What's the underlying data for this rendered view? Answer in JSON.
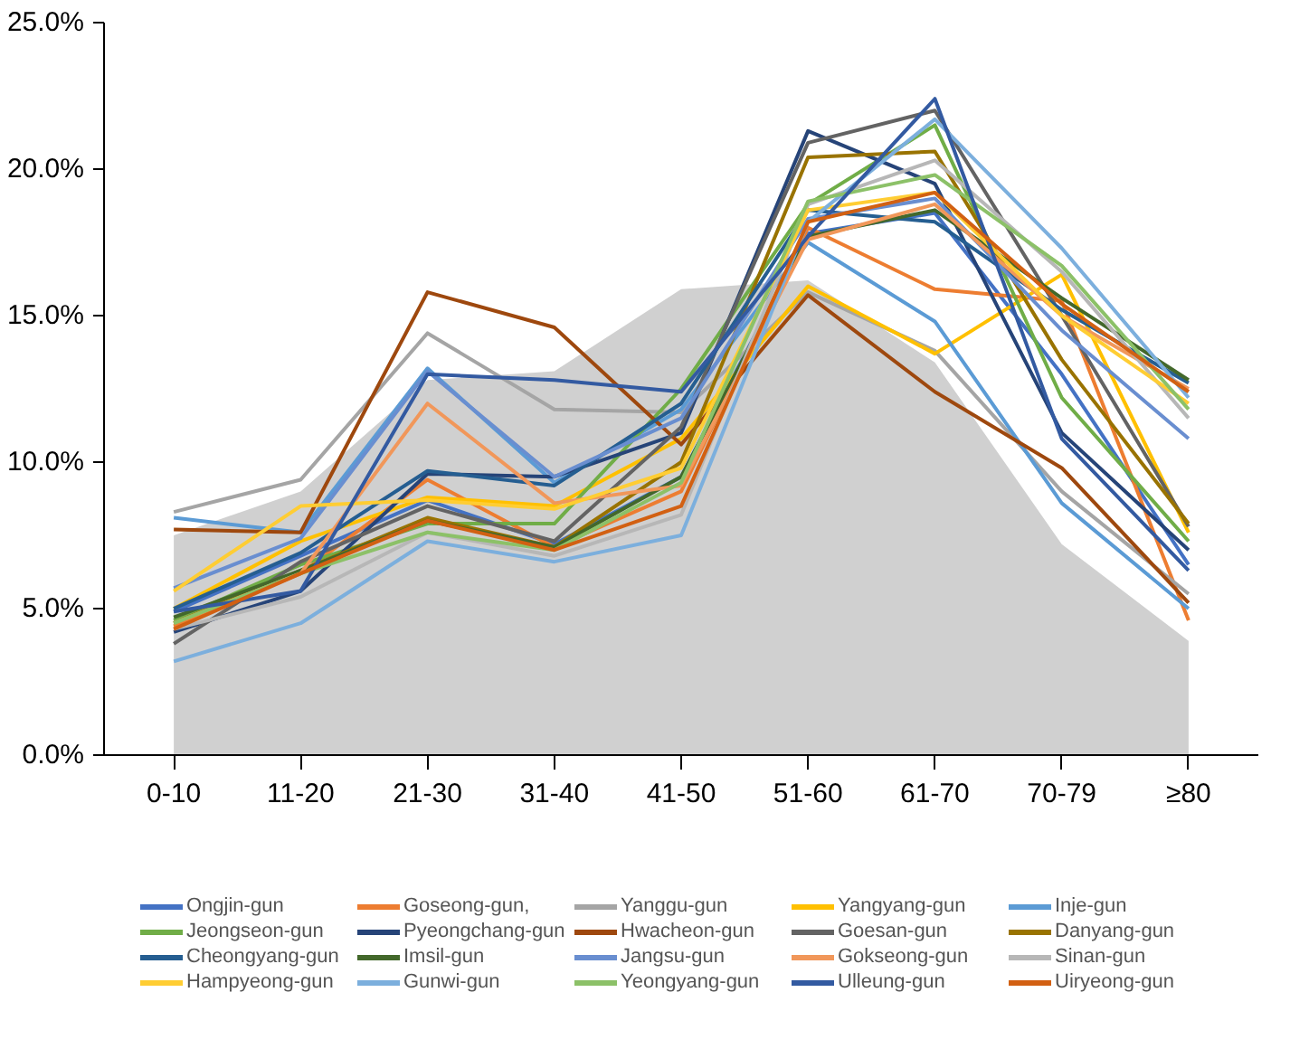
{
  "chart_data": {
    "type": "line",
    "categories": [
      "0-10",
      "11-20",
      "21-30",
      "31-40",
      "41-50",
      "51-60",
      "61-70",
      "70-79",
      "≥80"
    ],
    "ylim": [
      0,
      25
    ],
    "yticks": [
      {
        "value": 0,
        "label": "0.0%"
      },
      {
        "value": 5,
        "label": "5.0%"
      },
      {
        "value": 10,
        "label": "10.0%"
      },
      {
        "value": 15,
        "label": "15.0%"
      },
      {
        "value": 20,
        "label": "20.0%"
      },
      {
        "value": 25,
        "label": "25.0%"
      }
    ],
    "grid": false,
    "legend": "bottom",
    "marker": "none",
    "line_style": "solid",
    "series": [
      {
        "type": "area",
        "color": "#d0d0d0",
        "values": [
          7.5,
          9.0,
          12.8,
          13.1,
          15.9,
          16.2,
          13.4,
          7.2,
          3.9
        ]
      },
      {
        "name": "Ongjin-gun",
        "color": "#4472c4",
        "values": [
          4.9,
          6.8,
          8.7,
          7.2,
          9.5,
          17.8,
          18.5,
          13.0,
          6.5
        ]
      },
      {
        "name": "Goseong-gun,",
        "color": "#ed7d31",
        "values": [
          4.4,
          6.2,
          9.4,
          7.1,
          9.0,
          18.0,
          15.9,
          15.5,
          4.6
        ]
      },
      {
        "name": "Yanggu-gun",
        "color": "#a5a5a5",
        "values": [
          8.3,
          9.4,
          14.4,
          11.8,
          11.7,
          15.8,
          13.8,
          9.0,
          5.5
        ]
      },
      {
        "name": "Yangyang-gun",
        "color": "#ffc000",
        "values": [
          5.0,
          7.3,
          8.8,
          8.5,
          10.8,
          16.0,
          13.7,
          16.4,
          7.6
        ]
      },
      {
        "name": "Inje-gun",
        "color": "#5b9bd5",
        "values": [
          8.1,
          7.6,
          13.2,
          9.3,
          11.8,
          17.5,
          14.8,
          8.6,
          5.0
        ]
      },
      {
        "name": "Jeongseon-gun",
        "color": "#70ad47",
        "values": [
          4.6,
          6.5,
          7.9,
          7.9,
          12.5,
          18.8,
          21.5,
          12.2,
          7.3
        ]
      },
      {
        "name": "Pyeongchang-gun",
        "color": "#264478",
        "values": [
          4.2,
          5.6,
          9.6,
          9.5,
          11.0,
          21.3,
          19.5,
          11.0,
          7.0
        ]
      },
      {
        "name": "Hwacheon-gun",
        "color": "#9e480e",
        "values": [
          7.7,
          7.6,
          15.8,
          14.6,
          10.6,
          15.7,
          12.4,
          9.8,
          5.2
        ]
      },
      {
        "name": "Goesan-gun",
        "color": "#636363",
        "values": [
          3.8,
          6.6,
          8.5,
          7.3,
          11.2,
          20.9,
          22.0,
          15.0,
          7.8
        ]
      },
      {
        "name": "Danyang-gun",
        "color": "#997300",
        "values": [
          4.5,
          6.3,
          8.1,
          7.1,
          10.0,
          20.4,
          20.6,
          13.5,
          7.9
        ]
      },
      {
        "name": "Cheongyang-gun",
        "color": "#255e91",
        "values": [
          5.0,
          6.9,
          9.7,
          9.2,
          12.0,
          18.6,
          18.2,
          15.2,
          12.7
        ]
      },
      {
        "name": "Imsil-gun",
        "color": "#43682b",
        "values": [
          4.7,
          6.3,
          8.0,
          7.1,
          9.5,
          17.7,
          18.6,
          15.6,
          12.8
        ]
      },
      {
        "name": "Jangsu-gun",
        "color": "#698ed0",
        "values": [
          5.7,
          7.4,
          13.1,
          9.5,
          11.5,
          18.3,
          19.0,
          14.5,
          10.8
        ]
      },
      {
        "name": "Gokseong-gun",
        "color": "#f1975a",
        "values": [
          4.5,
          6.2,
          12.0,
          8.6,
          9.2,
          17.6,
          18.8,
          15.0,
          12.5
        ]
      },
      {
        "name": "Sinan-gun",
        "color": "#b7b7b7",
        "values": [
          4.3,
          5.4,
          7.6,
          6.8,
          8.2,
          18.8,
          20.3,
          16.5,
          11.5
        ]
      },
      {
        "name": "Hampyeong-gun",
        "color": "#ffcd33",
        "values": [
          5.6,
          8.5,
          8.7,
          8.4,
          9.8,
          18.6,
          19.2,
          15.0,
          12.0
        ]
      },
      {
        "name": "Gunwi-gun",
        "color": "#7cafdd",
        "values": [
          3.2,
          4.5,
          7.3,
          6.6,
          7.5,
          18.2,
          21.7,
          17.3,
          12.2
        ]
      },
      {
        "name": "Yeongyang-gun",
        "color": "#8cc168",
        "values": [
          4.5,
          6.2,
          7.6,
          7.0,
          9.3,
          18.9,
          19.8,
          16.7,
          11.8
        ]
      },
      {
        "name": "Ulleung-gun",
        "color": "#335aa1",
        "values": [
          4.9,
          5.6,
          13.0,
          12.8,
          12.4,
          17.7,
          22.4,
          10.8,
          6.3
        ]
      },
      {
        "name": "Uiryeong-gun",
        "color": "#d26012",
        "values": [
          4.3,
          6.2,
          8.0,
          7.0,
          8.5,
          18.2,
          19.2,
          15.4,
          12.4
        ]
      }
    ]
  }
}
